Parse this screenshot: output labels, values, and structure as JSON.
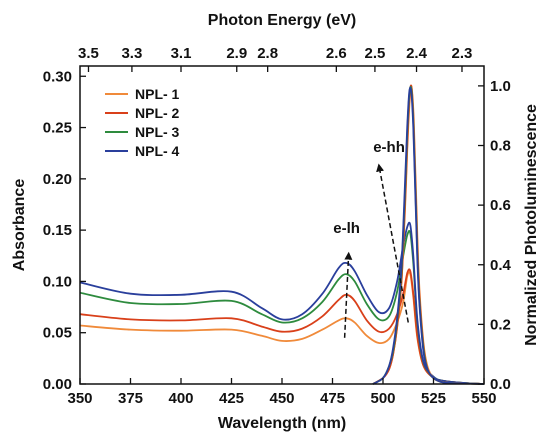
{
  "chart_data": {
    "type": "line",
    "xlabel": "Wavelength (nm)",
    "ylabel": "Absorbance",
    "y2label": "Normalized Photoluminescence",
    "x2label": "Photon Energy (eV)",
    "xlim": [
      350,
      550
    ],
    "ylim": [
      0,
      0.31
    ],
    "y2lim": [
      0,
      1.0667
    ],
    "xticks": [
      350,
      375,
      400,
      425,
      450,
      475,
      500,
      525,
      550
    ],
    "xtick_labels": [
      "350",
      "375",
      "400",
      "425",
      "450",
      "475",
      "500",
      "525",
      "550"
    ],
    "yticks": [
      0.0,
      0.05,
      0.1,
      0.15,
      0.2,
      0.25,
      0.3
    ],
    "ytick_labels": [
      "0.00",
      "0.05",
      "0.10",
      "0.15",
      "0.20",
      "0.25",
      "0.30"
    ],
    "y2ticks": [
      0.0,
      0.2,
      0.4,
      0.6,
      0.8,
      1.0
    ],
    "y2tick_labels": [
      "0.0",
      "0.2",
      "0.4",
      "0.6",
      "0.8",
      "1.0"
    ],
    "top_ticks": [
      {
        "label": "3.5",
        "wavelength": 354.2
      },
      {
        "label": "3.3",
        "wavelength": 375.7
      },
      {
        "label": "3.1",
        "wavelength": 400.0
      },
      {
        "label": "2.9",
        "wavelength": 427.6
      },
      {
        "label": "2.8",
        "wavelength": 442.9
      },
      {
        "label": "2.6",
        "wavelength": 476.9
      },
      {
        "label": "2.5",
        "wavelength": 496.0
      },
      {
        "label": "2.4",
        "wavelength": 516.6
      },
      {
        "label": "2.3",
        "wavelength": 539.1
      }
    ],
    "legend_position": "top-left",
    "grid": false,
    "series": [
      {
        "name": "NPL- 1",
        "color": "#f08a3a",
        "axis": "left",
        "x": [
          350,
          375,
          400,
          425,
          440,
          450,
          460,
          470,
          478,
          482,
          486,
          492,
          498,
          503,
          507,
          510,
          512,
          513.5,
          515,
          517,
          520,
          525,
          530,
          540,
          550
        ],
        "y": [
          0.057,
          0.053,
          0.052,
          0.053,
          0.047,
          0.042,
          0.044,
          0.053,
          0.062,
          0.064,
          0.06,
          0.047,
          0.04,
          0.044,
          0.06,
          0.08,
          0.105,
          0.107,
          0.085,
          0.045,
          0.018,
          0.006,
          0.003,
          0.001,
          0.0
        ]
      },
      {
        "name": "NPL- 2",
        "color": "#d9401a",
        "axis": "left",
        "x": [
          350,
          375,
          400,
          425,
          440,
          450,
          460,
          470,
          478,
          482,
          486,
          492,
          498,
          503,
          507,
          510,
          512,
          513.5,
          515,
          517,
          520,
          525,
          530,
          540,
          550
        ],
        "y": [
          0.068,
          0.063,
          0.062,
          0.064,
          0.056,
          0.051,
          0.054,
          0.066,
          0.082,
          0.087,
          0.081,
          0.062,
          0.051,
          0.054,
          0.068,
          0.088,
          0.108,
          0.11,
          0.088,
          0.047,
          0.018,
          0.006,
          0.003,
          0.001,
          0.0
        ]
      },
      {
        "name": "NPL- 3",
        "color": "#2e8b3e",
        "axis": "left",
        "x": [
          350,
          375,
          400,
          425,
          440,
          450,
          460,
          470,
          478,
          482,
          486,
          492,
          498,
          503,
          507,
          510,
          512,
          513.5,
          515,
          517,
          520,
          525,
          530,
          540,
          550
        ],
        "y": [
          0.089,
          0.079,
          0.078,
          0.081,
          0.068,
          0.06,
          0.064,
          0.08,
          0.102,
          0.107,
          0.1,
          0.078,
          0.063,
          0.066,
          0.09,
          0.125,
          0.145,
          0.147,
          0.118,
          0.06,
          0.021,
          0.007,
          0.003,
          0.001,
          0.0
        ]
      },
      {
        "name": "NPL- 4",
        "color": "#2a3f9c",
        "axis": "left",
        "x": [
          350,
          375,
          400,
          425,
          440,
          450,
          460,
          470,
          478,
          482,
          486,
          492,
          498,
          503,
          507,
          510,
          512,
          513.5,
          515,
          517,
          520,
          525,
          530,
          540,
          550
        ],
        "y": [
          0.099,
          0.088,
          0.087,
          0.09,
          0.074,
          0.063,
          0.068,
          0.088,
          0.113,
          0.118,
          0.11,
          0.087,
          0.07,
          0.074,
          0.1,
          0.135,
          0.153,
          0.155,
          0.125,
          0.063,
          0.022,
          0.007,
          0.003,
          0.001,
          0.0
        ]
      },
      {
        "name": "NPL- 1",
        "color": "#f08a3a",
        "axis": "right",
        "legend": false,
        "x": [
          495,
          500,
          503,
          505,
          507,
          509,
          510,
          511,
          512,
          513,
          514,
          515,
          516,
          517,
          518,
          520,
          522,
          525,
          530,
          540,
          550
        ],
        "y": [
          0.0,
          0.02,
          0.05,
          0.1,
          0.19,
          0.33,
          0.45,
          0.6,
          0.78,
          0.93,
          1.0,
          0.92,
          0.72,
          0.5,
          0.32,
          0.14,
          0.06,
          0.02,
          0.006,
          0.002,
          0.0
        ]
      },
      {
        "name": "NPL- 2",
        "color": "#d9401a",
        "axis": "right",
        "legend": false,
        "x": [
          495,
          500,
          503,
          505,
          507,
          509,
          510,
          511,
          512,
          513,
          514,
          515,
          516,
          517,
          518,
          520,
          522,
          525,
          530,
          540,
          550
        ],
        "y": [
          0.0,
          0.02,
          0.05,
          0.1,
          0.19,
          0.33,
          0.46,
          0.62,
          0.8,
          0.95,
          1.0,
          0.9,
          0.69,
          0.47,
          0.3,
          0.13,
          0.05,
          0.02,
          0.005,
          0.002,
          0.0
        ]
      },
      {
        "name": "NPL- 3",
        "color": "#2e8b3e",
        "axis": "right",
        "legend": false,
        "x": [
          495,
          500,
          503,
          505,
          507,
          509,
          510,
          511,
          512,
          513,
          514,
          515,
          516,
          517,
          518,
          520,
          522,
          525,
          530,
          540,
          550
        ],
        "y": [
          0.0,
          0.02,
          0.06,
          0.11,
          0.21,
          0.36,
          0.5,
          0.66,
          0.84,
          0.97,
          0.99,
          0.88,
          0.66,
          0.44,
          0.28,
          0.12,
          0.05,
          0.02,
          0.005,
          0.002,
          0.0
        ]
      },
      {
        "name": "NPL- 4",
        "color": "#2a3f9c",
        "axis": "right",
        "legend": false,
        "x": [
          495,
          500,
          503,
          505,
          507,
          509,
          510,
          511,
          512,
          513,
          514,
          515,
          516,
          517,
          518,
          520,
          522,
          525,
          530,
          540,
          550
        ],
        "y": [
          0.0,
          0.02,
          0.06,
          0.12,
          0.22,
          0.38,
          0.52,
          0.69,
          0.86,
          0.98,
          0.98,
          0.86,
          0.64,
          0.42,
          0.27,
          0.11,
          0.05,
          0.02,
          0.005,
          0.002,
          0.0
        ]
      }
    ],
    "annotations": [
      {
        "text": "e-lh",
        "x": 482,
        "y": 0.147,
        "arrow": {
          "from": [
            481,
            0.045
          ],
          "to": [
            483,
            0.127
          ]
        }
      },
      {
        "text": "e-hh",
        "x": 503,
        "y": 0.226,
        "arrow": {
          "from": [
            512.5,
            0.06
          ],
          "to": [
            498,
            0.213
          ]
        }
      }
    ]
  }
}
